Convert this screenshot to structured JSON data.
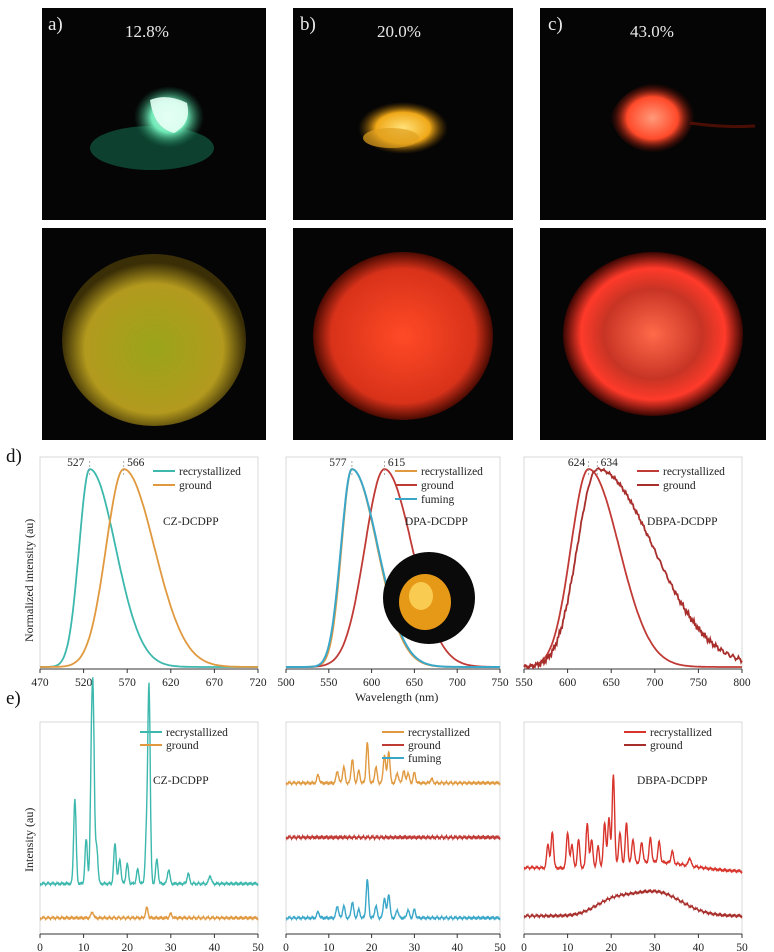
{
  "panels": [
    {
      "label": "a)",
      "efficiency": "12.8%",
      "crystal_color": "#5fe0a8",
      "film_color": "#b39a1e"
    },
    {
      "label": "b)",
      "efficiency": "20.0%",
      "crystal_color": "#f2b21a",
      "film_color": "#e8401c"
    },
    {
      "label": "c)",
      "efficiency": "43.0%",
      "crystal_color": "#ff5a3a",
      "film_color": "#ff3a2a"
    }
  ],
  "row_labels": {
    "d": "d)",
    "e": "e)"
  },
  "pl_ylabel": "Normalized intensity (au)",
  "xrd_ylabel": "Intensity (au)",
  "pl_xlabel": "Wavelength (nm)",
  "colors": {
    "teal": "#3cb8ad",
    "orange": "#e0993f",
    "red": "#c03a36",
    "blue": "#3aa7c9",
    "axis": "#333333"
  },
  "chart_data": [
    {
      "type": "line",
      "id": "pl-cz",
      "title": "CZ-DCDPP",
      "xlabel": "",
      "ylabel": "Normalized intensity (au)",
      "xlim": [
        470,
        720
      ],
      "ylim": [
        0,
        1.05
      ],
      "xticks": [
        "470",
        "520",
        "570",
        "620",
        "670",
        "720"
      ],
      "peak_labels": [
        "527",
        "566"
      ],
      "series": [
        {
          "name": "recrystallized",
          "peak": 527,
          "width_left": 18,
          "width_right": 44,
          "color": "#3cb8ad"
        },
        {
          "name": "ground",
          "peak": 566,
          "width_left": 30,
          "width_right": 52,
          "color": "#e0993f"
        }
      ]
    },
    {
      "type": "line",
      "id": "pl-dpa",
      "title": "DPA-DCDPP",
      "xlabel": "Wavelength (nm)",
      "ylabel": "",
      "xlim": [
        500,
        750
      ],
      "ylim": [
        0,
        1.05
      ],
      "xticks": [
        "500",
        "550",
        "600",
        "650",
        "700",
        "750"
      ],
      "peak_labels": [
        "577",
        "615"
      ],
      "series": [
        {
          "name": "recrystallized",
          "peak": 577,
          "width_left": 18,
          "width_right": 44,
          "color": "#e0993f"
        },
        {
          "name": "ground",
          "peak": 615,
          "width_left": 34,
          "width_right": 48,
          "color": "#c03a36"
        },
        {
          "name": "fuming",
          "peak": 577,
          "width_left": 19,
          "width_right": 45,
          "color": "#3aa7c9"
        }
      ]
    },
    {
      "type": "line",
      "id": "pl-dbpa",
      "title": "DBPA-DCDPP",
      "xlabel": "",
      "ylabel": "",
      "xlim": [
        550,
        800
      ],
      "ylim": [
        0,
        1.05
      ],
      "xticks": [
        "550",
        "600",
        "650",
        "700",
        "750",
        "800"
      ],
      "peak_labels": [
        "624",
        "634"
      ],
      "series": [
        {
          "name": "recrystallized",
          "peak": 624,
          "width_left": 30,
          "width_right": 52,
          "color": "#c03a36"
        },
        {
          "name": "ground",
          "peak": 634,
          "width_left": 34,
          "width_right": 95,
          "color": "#a82e2c"
        }
      ]
    },
    {
      "type": "line",
      "id": "xrd-cz",
      "title": "CZ-DCDPP",
      "xlabel": "",
      "ylabel": "Intensity (au)",
      "xlim": [
        0,
        50
      ],
      "ylim": [
        0,
        1
      ],
      "xticks": [
        "0",
        "10",
        "20",
        "30",
        "40",
        "50"
      ],
      "series": [
        {
          "name": "recrystallized",
          "color": "#3cb8ad",
          "baseline": 0.22,
          "peaks": [
            [
              8.0,
              0.42
            ],
            [
              10.6,
              0.22
            ],
            [
              11.8,
              0.52
            ],
            [
              12.2,
              0.78
            ],
            [
              13.0,
              0.18
            ],
            [
              17.2,
              0.2
            ],
            [
              18.3,
              0.12
            ],
            [
              20.0,
              0.1
            ],
            [
              22.4,
              0.07
            ],
            [
              24.4,
              0.22
            ],
            [
              25.0,
              0.98
            ],
            [
              26.8,
              0.12
            ],
            [
              29.5,
              0.07
            ],
            [
              34.0,
              0.05
            ],
            [
              39.0,
              0.04
            ]
          ]
        },
        {
          "name": "ground",
          "color": "#e0993f",
          "baseline": 0.05,
          "peaks": [
            [
              12.0,
              0.03
            ],
            [
              24.5,
              0.05
            ],
            [
              30.0,
              0.02
            ]
          ]
        }
      ]
    },
    {
      "type": "line",
      "id": "xrd-dpa",
      "title": "",
      "xlabel": "",
      "ylabel": "",
      "xlim": [
        0,
        50
      ],
      "ylim": [
        0,
        1
      ],
      "xticks": [
        "0",
        "10",
        "20",
        "30",
        "40",
        "50"
      ],
      "series": [
        {
          "name": "recrystallized",
          "color": "#e0993f",
          "baseline": 0.72,
          "peaks": [
            [
              7.5,
              0.04
            ],
            [
              12.0,
              0.06
            ],
            [
              13.5,
              0.08
            ],
            [
              15.5,
              0.12
            ],
            [
              17.0,
              0.06
            ],
            [
              19.0,
              0.2
            ],
            [
              21.0,
              0.08
            ],
            [
              23.0,
              0.14
            ],
            [
              24.0,
              0.16
            ],
            [
              26.0,
              0.05
            ],
            [
              27.5,
              0.06
            ],
            [
              28.5,
              0.05
            ],
            [
              30.0,
              0.05
            ],
            [
              34.0,
              0.02
            ]
          ]
        },
        {
          "name": "ground",
          "color": "#c03a36",
          "baseline": 0.45,
          "peaks": []
        },
        {
          "name": "fuming",
          "color": "#3aa7c9",
          "baseline": 0.05,
          "peaks": [
            [
              7.5,
              0.03
            ],
            [
              12.0,
              0.06
            ],
            [
              13.5,
              0.06
            ],
            [
              15.5,
              0.08
            ],
            [
              17.0,
              0.04
            ],
            [
              19.0,
              0.19
            ],
            [
              21.0,
              0.06
            ],
            [
              23.0,
              0.1
            ],
            [
              24.0,
              0.12
            ],
            [
              26.0,
              0.04
            ],
            [
              28.5,
              0.04
            ],
            [
              30.0,
              0.04
            ]
          ]
        }
      ]
    },
    {
      "type": "line",
      "id": "xrd-dbpa",
      "title": "DBPA-DCDPP",
      "xlabel": "",
      "ylabel": "",
      "xlim": [
        0,
        50
      ],
      "ylim": [
        0,
        1
      ],
      "xticks": [
        "0",
        "10",
        "20",
        "30",
        "40",
        "50"
      ],
      "series": [
        {
          "name": "recrystallized",
          "color": "#d8342c",
          "baseline": 0.3,
          "peaks": [
            [
              5.5,
              0.12
            ],
            [
              6.5,
              0.18
            ],
            [
              10.0,
              0.18
            ],
            [
              11.0,
              0.12
            ],
            [
              12.5,
              0.14
            ],
            [
              14.5,
              0.22
            ],
            [
              15.5,
              0.14
            ],
            [
              17.0,
              0.1
            ],
            [
              18.5,
              0.22
            ],
            [
              19.5,
              0.24
            ],
            [
              20.5,
              0.45
            ],
            [
              22.0,
              0.16
            ],
            [
              23.5,
              0.2
            ],
            [
              25.0,
              0.12
            ],
            [
              27.0,
              0.1
            ],
            [
              29.0,
              0.12
            ],
            [
              31.0,
              0.1
            ],
            [
              34.0,
              0.06
            ],
            [
              38.0,
              0.04
            ]
          ]
        },
        {
          "name": "ground",
          "color": "#a82e2c",
          "baseline": 0.06,
          "broad": [
            [
              20.0,
              0.06,
              4
            ],
            [
              30.0,
              0.12,
              6
            ]
          ]
        }
      ]
    }
  ]
}
